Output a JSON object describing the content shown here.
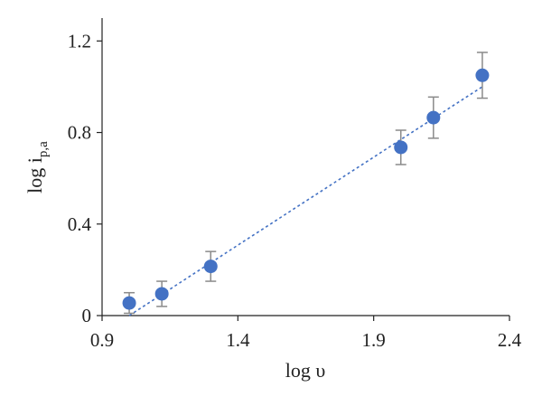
{
  "chart_data": {
    "type": "scatter",
    "title": "",
    "xlabel": "log υ",
    "ylabel": {
      "main": "log i",
      "subscript": "p,a"
    },
    "xlim": [
      0.9,
      2.4
    ],
    "ylim": [
      0,
      1.3
    ],
    "x_ticks": [
      0.9,
      1.4,
      1.9,
      2.4
    ],
    "x_tick_labels": [
      "0.9",
      "1.4",
      "1.9",
      "2.4"
    ],
    "y_ticks": [
      0,
      0.4,
      0.8,
      1.2
    ],
    "y_tick_labels": [
      "0",
      "0.4",
      "0.8",
      "1.2"
    ],
    "grid": false,
    "legend": "none",
    "marker_color": "#4472c4",
    "error_bar_color": "#8a8a8a",
    "trendline_color": "#4472c4",
    "series": [
      {
        "x": [
          1.0,
          1.12,
          1.3,
          2.0,
          2.12,
          2.3
        ],
        "y": [
          0.055,
          0.095,
          0.215,
          0.735,
          0.865,
          1.05
        ],
        "error": [
          0.045,
          0.055,
          0.065,
          0.075,
          0.09,
          0.1
        ]
      }
    ],
    "trendline": {
      "type": "linear",
      "x": [
        1.0,
        2.3
      ],
      "y": [
        0.0,
        1.0
      ]
    }
  }
}
